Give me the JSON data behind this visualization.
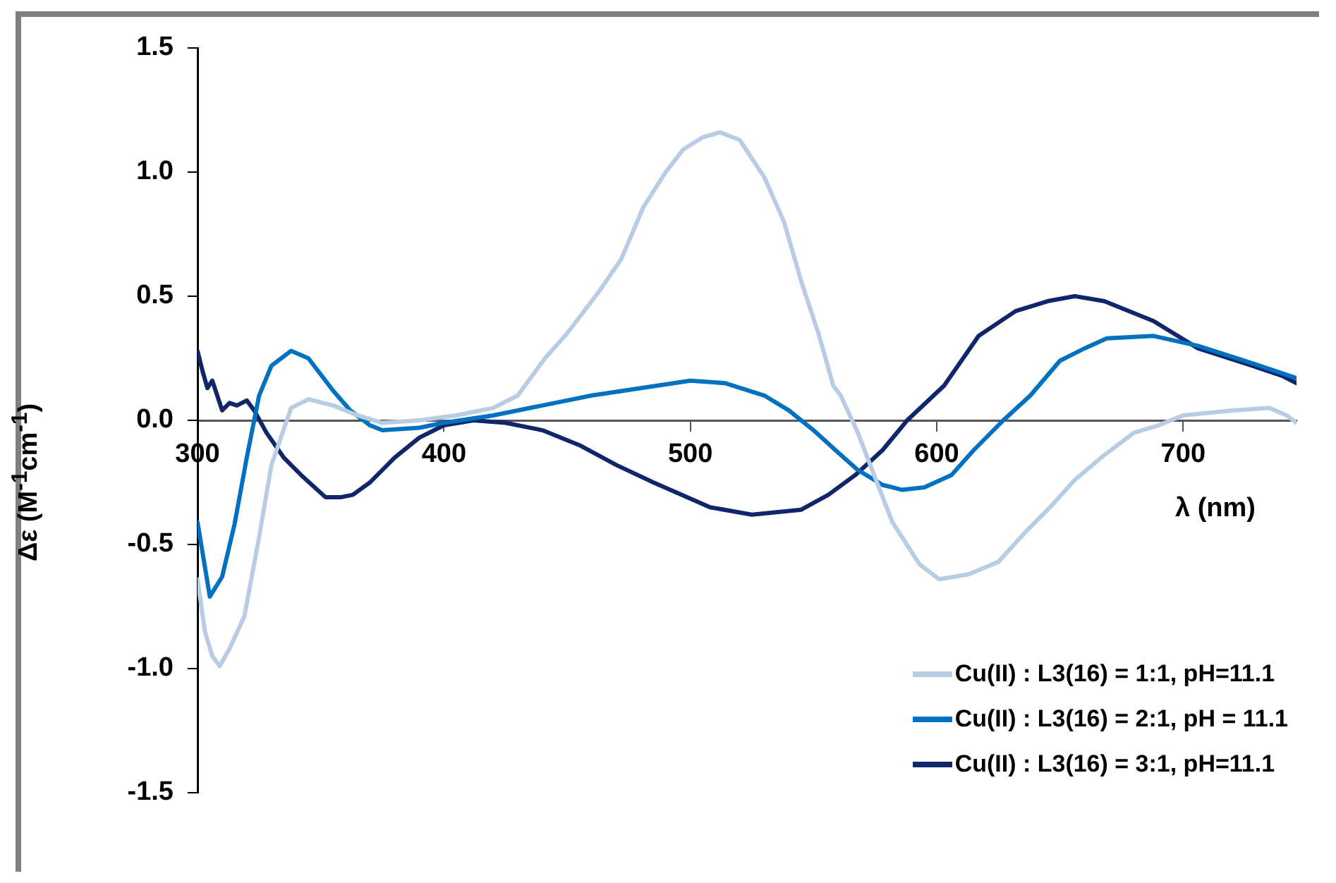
{
  "chart_data": {
    "type": "line",
    "xlabel": "λ (nm)",
    "ylabel": "Δε (M$^{-1}$cm$^{-1}$)",
    "xlim": [
      300,
      746
    ],
    "xticks": [
      300,
      400,
      500,
      600,
      700
    ],
    "ylim": [
      -1.5,
      1.5
    ],
    "yticks": [
      -1.5,
      {
        "value": -1,
        "label": "-1.0"
      },
      -0.5,
      {
        "value": 0,
        "label": "0.0"
      },
      0.5,
      {
        "value": 1,
        "label": "1.0"
      },
      1.5
    ],
    "grid": false,
    "legend": "bottom right",
    "marker": "none",
    "line_style": "solid",
    "series": [
      {
        "name": "Cu(II) : L3(16) = 1:1, pH=11.1",
        "color": "#b8cce4",
        "x": [
          300,
          303,
          306,
          309,
          313,
          319,
          325,
          330,
          338,
          345,
          355,
          365,
          375,
          390,
          405,
          420,
          430,
          441,
          450,
          463,
          472,
          481,
          490,
          497,
          505,
          512,
          520,
          530,
          538,
          545,
          552,
          558,
          561,
          568,
          573,
          582,
          593,
          601,
          613,
          625,
          636,
          646,
          656,
          668,
          680,
          690,
          700,
          710,
          720,
          735,
          742,
          746
        ],
        "values": [
          -0.64,
          -0.85,
          -0.95,
          -0.99,
          -0.92,
          -0.79,
          -0.47,
          -0.18,
          0.05,
          0.085,
          0.06,
          0.02,
          -0.01,
          0.0,
          0.02,
          0.05,
          0.1,
          0.25,
          0.35,
          0.52,
          0.65,
          0.86,
          1.0,
          1.09,
          1.14,
          1.16,
          1.13,
          0.98,
          0.8,
          0.56,
          0.35,
          0.14,
          0.1,
          -0.05,
          -0.18,
          -0.41,
          -0.58,
          -0.64,
          -0.62,
          -0.57,
          -0.45,
          -0.35,
          -0.24,
          -0.14,
          -0.05,
          -0.02,
          0.02,
          0.03,
          0.04,
          0.05,
          0.02,
          -0.01
        ]
      },
      {
        "name": "Cu(II) : L3(16) = 2:1, pH = 11.1",
        "color": "#0070c0",
        "x": [
          300,
          305,
          310,
          315,
          320,
          325,
          330,
          338,
          345,
          355,
          362,
          370,
          375,
          390,
          400,
          420,
          440,
          460,
          480,
          500,
          514,
          530,
          540,
          550,
          560,
          568,
          578,
          586,
          595,
          606,
          615,
          627,
          638,
          650,
          660,
          669,
          688,
          706,
          725,
          740,
          746
        ],
        "values": [
          -0.41,
          -0.71,
          -0.63,
          -0.42,
          -0.15,
          0.1,
          0.22,
          0.28,
          0.25,
          0.12,
          0.04,
          -0.02,
          -0.04,
          -0.03,
          -0.01,
          0.02,
          0.06,
          0.1,
          0.13,
          0.16,
          0.15,
          0.1,
          0.04,
          -0.04,
          -0.13,
          -0.2,
          -0.26,
          -0.28,
          -0.27,
          -0.22,
          -0.12,
          0.0,
          0.1,
          0.24,
          0.29,
          0.33,
          0.34,
          0.3,
          0.24,
          0.19,
          0.17
        ]
      },
      {
        "name": "Cu(II) : L3(16) = 3:1, pH=11.1",
        "color": "#10266b",
        "x": [
          300,
          302,
          304,
          306,
          308,
          310,
          313,
          316,
          320,
          323,
          328,
          335,
          342,
          352,
          358,
          363,
          370,
          380,
          390,
          400,
          412,
          425,
          440,
          455,
          470,
          485,
          508,
          525,
          545,
          556,
          567,
          578,
          588,
          603,
          617,
          632,
          645,
          656,
          668,
          688,
          706,
          725,
          740,
          746
        ],
        "values": [
          0.28,
          0.2,
          0.13,
          0.16,
          0.1,
          0.04,
          0.07,
          0.06,
          0.08,
          0.04,
          -0.05,
          -0.15,
          -0.22,
          -0.31,
          -0.31,
          -0.3,
          -0.25,
          -0.15,
          -0.07,
          -0.02,
          0.0,
          -0.01,
          -0.04,
          -0.1,
          -0.18,
          -0.25,
          -0.35,
          -0.38,
          -0.36,
          -0.3,
          -0.22,
          -0.12,
          0.0,
          0.14,
          0.34,
          0.44,
          0.48,
          0.5,
          0.48,
          0.4,
          0.29,
          0.23,
          0.18,
          0.15
        ]
      }
    ]
  }
}
